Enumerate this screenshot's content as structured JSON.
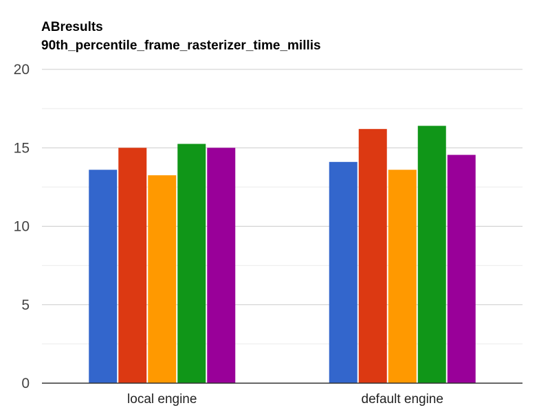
{
  "chart_data": {
    "type": "bar",
    "title": "ABresults",
    "subtitle": "90th_percentile_frame_rasterizer_time_millis",
    "xlabel": "",
    "ylabel": "",
    "categories": [
      "local engine",
      "default engine"
    ],
    "series": [
      {
        "values": [
          13.6,
          14.1
        ],
        "color": "#3366cc"
      },
      {
        "values": [
          15.0,
          16.2
        ],
        "color": "#dc3912"
      },
      {
        "values": [
          13.25,
          13.6
        ],
        "color": "#ff9900"
      },
      {
        "values": [
          15.25,
          16.4
        ],
        "color": "#109618"
      },
      {
        "values": [
          15.0,
          14.55
        ],
        "color": "#990099"
      }
    ],
    "ylim": [
      0,
      20
    ],
    "yticks": [
      "0",
      "5",
      "10",
      "15",
      "20"
    ],
    "grid": true,
    "legend": "none"
  }
}
